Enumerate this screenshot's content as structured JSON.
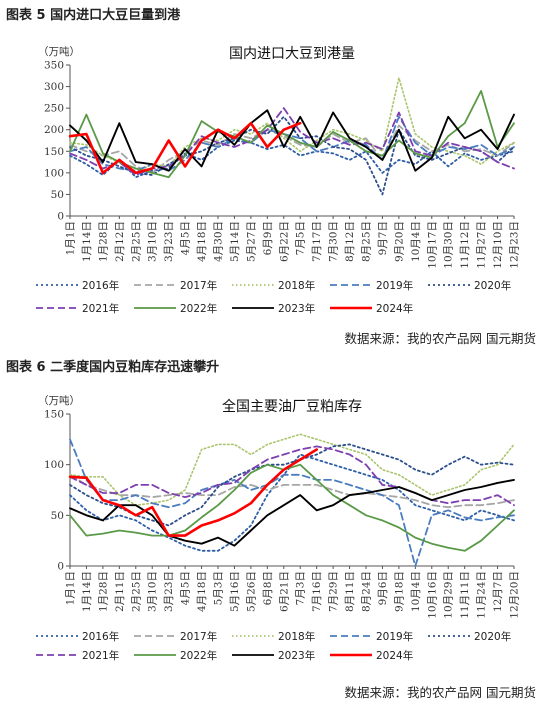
{
  "fig1": {
    "label": "图表 5 国内进口大豆巨量到港",
    "source": "数据来源：我的农产品网 国元期货"
  },
  "fig2": {
    "label": "图表 6 二季度国内豆粕库存迅速攀升",
    "source": "数据来源：我的农产品网 国元期货"
  },
  "colors": {
    "2016": "#2e5ea8",
    "2017": "#a6a6a6",
    "2018": "#a9c46b",
    "2019": "#4a7cc0",
    "2020": "#2c4f8c",
    "2021": "#7d3fb0",
    "2022": "#5a9a47",
    "2023": "#000000",
    "2024": "#ff0000"
  },
  "chart_data": [
    {
      "type": "line",
      "title": "国内进口大豆到港量",
      "ylabel": "（万吨）",
      "ylim": [
        0,
        350
      ],
      "yticks": [
        "0",
        "50",
        "100",
        "150",
        "200",
        "250",
        "300",
        "350"
      ],
      "categories": [
        "1月1日",
        "1月14日",
        "1月28日",
        "2月12日",
        "2月25日",
        "3月10日",
        "3月23日",
        "4月5日",
        "4月18日",
        "4月30日",
        "5月14日",
        "5月27日",
        "6月9日",
        "6月22日",
        "7月5日",
        "7月17日",
        "7月30日",
        "8月12日",
        "8月25日",
        "9月7日",
        "9月20日",
        "10月4日",
        "10月17日",
        "10月30日",
        "11月12日",
        "11月27日",
        "12月10日",
        "12月23日"
      ],
      "series": [
        {
          "name": "2016年",
          "key": "2016",
          "values": [
            140,
            120,
            95,
            130,
            90,
            105,
            110,
            145,
            130,
            160,
            175,
            170,
            155,
            165,
            140,
            150,
            145,
            130,
            150,
            100,
            130,
            120,
            150,
            115,
            145,
            130,
            140,
            150
          ]
        },
        {
          "name": "2017年",
          "key": "2017",
          "values": [
            165,
            150,
            140,
            150,
            115,
            100,
            130,
            150,
            175,
            165,
            190,
            180,
            200,
            185,
            165,
            160,
            190,
            170,
            180,
            130,
            210,
            175,
            150,
            165,
            150,
            155,
            140,
            170
          ]
        },
        {
          "name": "2018年",
          "key": "2018",
          "values": [
            170,
            165,
            140,
            125,
            100,
            120,
            115,
            160,
            180,
            175,
            200,
            190,
            215,
            180,
            150,
            175,
            200,
            190,
            175,
            150,
            320,
            190,
            160,
            150,
            140,
            120,
            150,
            170
          ]
        },
        {
          "name": "2019年",
          "key": "2019",
          "values": [
            150,
            160,
            120,
            110,
            105,
            120,
            105,
            130,
            170,
            160,
            180,
            170,
            200,
            190,
            180,
            150,
            160,
            175,
            165,
            130,
            230,
            170,
            140,
            160,
            155,
            165,
            140,
            160
          ]
        },
        {
          "name": "2020年",
          "key": "2020",
          "values": [
            160,
            140,
            130,
            115,
            100,
            95,
            120,
            140,
            150,
            170,
            180,
            200,
            190,
            230,
            180,
            185,
            160,
            155,
            130,
            50,
            200,
            140,
            130,
            145,
            160,
            150,
            125,
            160
          ]
        },
        {
          "name": "2021年",
          "key": "2021",
          "values": [
            145,
            130,
            110,
            125,
            95,
            110,
            115,
            140,
            185,
            170,
            160,
            175,
            200,
            250,
            195,
            170,
            180,
            165,
            170,
            155,
            240,
            150,
            140,
            170,
            160,
            150,
            125,
            110
          ]
        },
        {
          "name": "2022年",
          "key": "2022",
          "values": [
            150,
            235,
            145,
            125,
            110,
            100,
            90,
            140,
            220,
            195,
            185,
            170,
            210,
            190,
            170,
            160,
            195,
            175,
            150,
            140,
            175,
            145,
            135,
            185,
            215,
            290,
            160,
            215
          ]
        },
        {
          "name": "2023年",
          "key": "2023",
          "values": [
            210,
            175,
            125,
            215,
            125,
            120,
            105,
            155,
            115,
            200,
            165,
            215,
            245,
            160,
            230,
            160,
            240,
            180,
            160,
            130,
            200,
            105,
            135,
            230,
            180,
            200,
            155,
            235
          ]
        },
        {
          "name": "2024年",
          "key": "2024",
          "values": [
            185,
            190,
            100,
            130,
            100,
            110,
            175,
            115,
            175,
            200,
            180,
            215,
            160,
            200,
            215,
            null,
            null,
            null,
            null,
            null,
            null,
            null,
            null,
            null,
            null,
            null,
            null,
            null
          ]
        }
      ]
    },
    {
      "type": "line",
      "title": "全国主要油厂豆粕库存",
      "ylabel": "（万吨）",
      "ylim": [
        0,
        150
      ],
      "yticks": [
        "0",
        "50",
        "100",
        "150"
      ],
      "categories": [
        "1月1日",
        "1月14日",
        "1月28日",
        "2月11日",
        "2月25日",
        "3月10日",
        "3月23日",
        "4月5日",
        "4月18日",
        "5月3日",
        "5月16日",
        "5月26日",
        "6月8日",
        "6月21日",
        "7月3日",
        "7月16日",
        "7月29日",
        "8月11日",
        "8月24日",
        "9月6日",
        "9月18日",
        "10月4日",
        "10月16日",
        "10月29日",
        "11月11日",
        "11月24日",
        "12月7日",
        "12月20日"
      ],
      "series": [
        {
          "name": "2016年",
          "key": "2016",
          "values": [
            70,
            55,
            45,
            50,
            45,
            35,
            28,
            20,
            15,
            15,
            25,
            40,
            70,
            90,
            110,
            105,
            100,
            95,
            90,
            85,
            75,
            60,
            55,
            50,
            45,
            55,
            50,
            45
          ]
        },
        {
          "name": "2017年",
          "key": "2017",
          "values": [
            90,
            80,
            75,
            70,
            70,
            68,
            70,
            72,
            70,
            70,
            78,
            80,
            75,
            80,
            80,
            80,
            75,
            70,
            72,
            70,
            68,
            65,
            60,
            58,
            60,
            60,
            62,
            65
          ]
        },
        {
          "name": "2018年",
          "key": "2018",
          "values": [
            90,
            88,
            88,
            70,
            60,
            62,
            65,
            75,
            115,
            120,
            120,
            110,
            120,
            125,
            130,
            125,
            120,
            115,
            110,
            95,
            90,
            80,
            70,
            75,
            80,
            95,
            100,
            120
          ]
        },
        {
          "name": "2019年",
          "key": "2019",
          "values": [
            125,
            85,
            65,
            65,
            70,
            62,
            58,
            62,
            75,
            80,
            85,
            75,
            80,
            90,
            90,
            85,
            85,
            80,
            75,
            70,
            60,
            0,
            50,
            55,
            48,
            45,
            48,
            50
          ]
        },
        {
          "name": "2020年",
          "key": "2020",
          "values": [
            80,
            70,
            62,
            58,
            50,
            45,
            40,
            50,
            58,
            78,
            88,
            95,
            100,
            100,
            105,
            110,
            118,
            120,
            115,
            110,
            105,
            95,
            90,
            100,
            108,
            100,
            102,
            100
          ]
        },
        {
          "name": "2021年",
          "key": "2021",
          "values": [
            88,
            80,
            72,
            72,
            80,
            80,
            72,
            68,
            72,
            80,
            82,
            95,
            105,
            110,
            115,
            118,
            115,
            110,
            100,
            80,
            78,
            72,
            65,
            62,
            65,
            65,
            70,
            60
          ]
        },
        {
          "name": "2022年",
          "key": "2022",
          "values": [
            50,
            30,
            32,
            35,
            33,
            30,
            30,
            35,
            48,
            60,
            75,
            92,
            100,
            95,
            100,
            85,
            70,
            60,
            50,
            45,
            38,
            28,
            22,
            18,
            15,
            25,
            40,
            55
          ]
        },
        {
          "name": "2023年",
          "key": "2023",
          "values": [
            57,
            50,
            45,
            60,
            60,
            50,
            30,
            25,
            22,
            28,
            20,
            35,
            50,
            60,
            70,
            55,
            60,
            70,
            72,
            75,
            78,
            72,
            65,
            70,
            75,
            78,
            82,
            85
          ]
        },
        {
          "name": "2024年",
          "key": "2024",
          "values": [
            88,
            87,
            65,
            60,
            50,
            58,
            30,
            30,
            40,
            45,
            52,
            62,
            80,
            95,
            105,
            115,
            null,
            null,
            null,
            null,
            null,
            null,
            null,
            null,
            null,
            null,
            null,
            null
          ]
        }
      ]
    }
  ]
}
